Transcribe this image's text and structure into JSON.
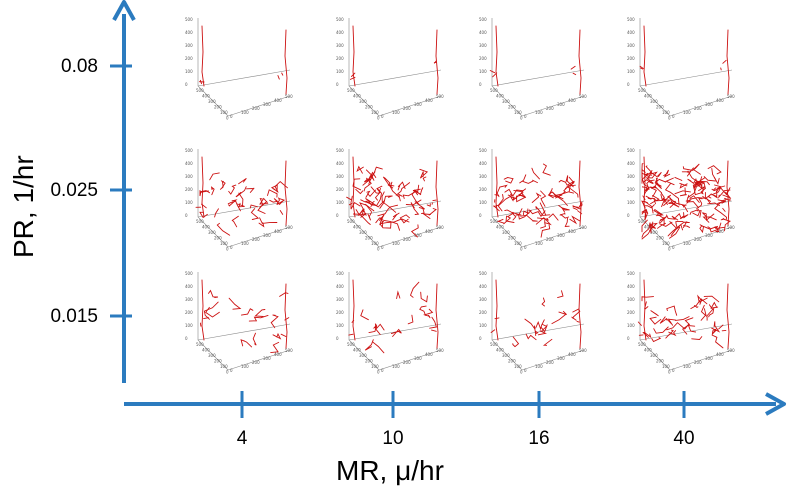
{
  "axes": {
    "x_title": "MR, μ/hr",
    "y_title": "PR, 1/hr",
    "x_ticks": [
      "4",
      "10",
      "16",
      "40"
    ],
    "y_ticks": [
      "0.08",
      "0.025",
      "0.015"
    ],
    "color": "#2b7bbf"
  },
  "network_color": "#cc1111",
  "panel_axis_color": "#888888",
  "panel_tick_labels": {
    "z": [
      "500",
      "400",
      "300",
      "200",
      "100",
      "0"
    ],
    "x": [
      "500",
      "400",
      "300",
      "200",
      "100",
      "0"
    ],
    "y": [
      "0",
      "100",
      "200",
      "300",
      "400",
      "500"
    ]
  },
  "grid": [
    {
      "pr": "0.08",
      "panels": [
        {
          "mr": "4",
          "density": "sparse"
        },
        {
          "mr": "10",
          "density": "sparse"
        },
        {
          "mr": "16",
          "density": "sparse"
        },
        {
          "mr": "40",
          "density": "sparse"
        }
      ]
    },
    {
      "pr": "0.025",
      "panels": [
        {
          "mr": "4",
          "density": "medium"
        },
        {
          "mr": "10",
          "density": "dense"
        },
        {
          "mr": "16",
          "density": "dense"
        },
        {
          "mr": "40",
          "density": "very dense"
        }
      ]
    },
    {
      "pr": "0.015",
      "panels": [
        {
          "mr": "4",
          "density": "low"
        },
        {
          "mr": "10",
          "density": "low"
        },
        {
          "mr": "16",
          "density": "low"
        },
        {
          "mr": "40",
          "density": "medium"
        }
      ]
    }
  ]
}
